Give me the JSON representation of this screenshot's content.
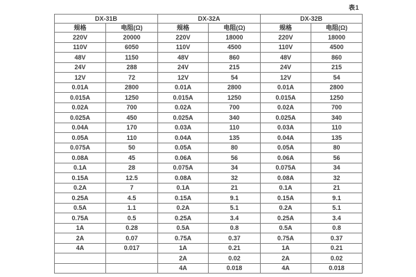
{
  "page": {
    "table_label": "表1"
  },
  "table": {
    "groups": [
      {
        "name": "DX-31B",
        "spec_header": "规格",
        "resistance_header": "电阻(Ω)",
        "rows": [
          [
            "220V",
            "20000"
          ],
          [
            "110V",
            "6050"
          ],
          [
            "48V",
            "1150"
          ],
          [
            "24V",
            "288"
          ],
          [
            "12V",
            "72"
          ],
          [
            "0.01A",
            "2800"
          ],
          [
            "0.015A",
            "1250"
          ],
          [
            "0.02A",
            "700"
          ],
          [
            "0.025A",
            "450"
          ],
          [
            "0.04A",
            "170"
          ],
          [
            "0.05A",
            "110"
          ],
          [
            "0.075A",
            "50"
          ],
          [
            "0.08A",
            "45"
          ],
          [
            "0.1A",
            "28"
          ],
          [
            "0.15A",
            "12.5"
          ],
          [
            "0.2A",
            "7"
          ],
          [
            "0.25A",
            "4.5"
          ],
          [
            "0.5A",
            "1.1"
          ],
          [
            "0.75A",
            "0.5"
          ],
          [
            "1A",
            "0.28"
          ],
          [
            "2A",
            "0.07"
          ],
          [
            "4A",
            "0.017"
          ],
          [
            "",
            ""
          ],
          [
            "",
            ""
          ]
        ]
      },
      {
        "name": "DX-32A",
        "spec_header": "规格",
        "resistance_header": "电阻(Ω)",
        "rows": [
          [
            "220V",
            "18000"
          ],
          [
            "110V",
            "4500"
          ],
          [
            "48V",
            "860"
          ],
          [
            "24V",
            "215"
          ],
          [
            "12V",
            "54"
          ],
          [
            "0.01A",
            "2800"
          ],
          [
            "0.015A",
            "1250"
          ],
          [
            "0.02A",
            "700"
          ],
          [
            "0.025A",
            "340"
          ],
          [
            "0.03A",
            "110"
          ],
          [
            "0.04A",
            "135"
          ],
          [
            "0.05A",
            "80"
          ],
          [
            "0.06A",
            "56"
          ],
          [
            "0.075A",
            "34"
          ],
          [
            "0.08A",
            "32"
          ],
          [
            "0.1A",
            "21"
          ],
          [
            "0.15A",
            "9.1"
          ],
          [
            "0.2A",
            "5.1"
          ],
          [
            "0.25A",
            "3.4"
          ],
          [
            "0.5A",
            "0.8"
          ],
          [
            "0.75A",
            "0.37"
          ],
          [
            "1A",
            "0.21"
          ],
          [
            "2A",
            "0.02"
          ],
          [
            "4A",
            "0.018"
          ]
        ]
      },
      {
        "name": "DX-32B",
        "spec_header": "规格",
        "resistance_header": "电阻(Ω)",
        "rows": [
          [
            "220V",
            "18000"
          ],
          [
            "110V",
            "4500"
          ],
          [
            "48V",
            "860"
          ],
          [
            "24V",
            "215"
          ],
          [
            "12V",
            "54"
          ],
          [
            "0.01A",
            "2800"
          ],
          [
            "0.015A",
            "1250"
          ],
          [
            "0.02A",
            "700"
          ],
          [
            "0.025A",
            "340"
          ],
          [
            "0.03A",
            "110"
          ],
          [
            "0.04A",
            "135"
          ],
          [
            "0.05A",
            "80"
          ],
          [
            "0.06A",
            "56"
          ],
          [
            "0.075A",
            "34"
          ],
          [
            "0.08A",
            "32"
          ],
          [
            "0.1A",
            "21"
          ],
          [
            "0.15A",
            "9.1"
          ],
          [
            "0.2A",
            "5.1"
          ],
          [
            "0.25A",
            "3.4"
          ],
          [
            "0.5A",
            "0.8"
          ],
          [
            "0.75A",
            "0.37"
          ],
          [
            "1A",
            "0.21"
          ],
          [
            "2A",
            "0.02"
          ],
          [
            "4A",
            "0.018"
          ]
        ]
      }
    ]
  }
}
